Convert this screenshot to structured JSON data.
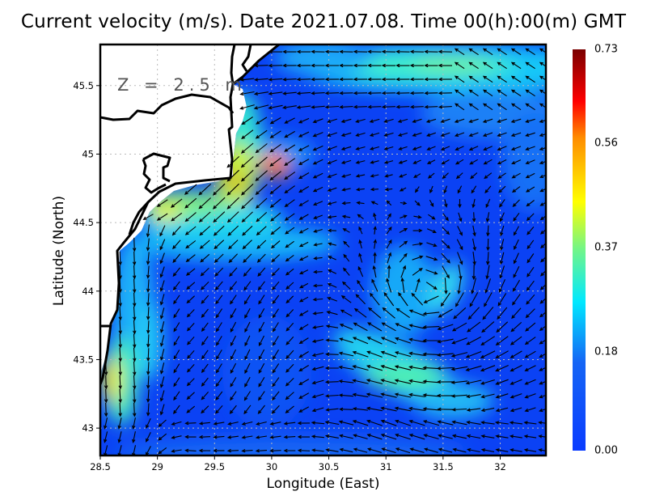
{
  "title": "Current velocity (m/s). Date 2021.07.08. Time 00(h):00(m) GMT",
  "depth_label": "Z = 2.5 m",
  "map": {
    "xlabel": "Longitude (East)",
    "ylabel": "Latitude (North)",
    "lon_range": [
      28.5,
      32.4
    ],
    "lat_range": [
      42.8,
      45.8
    ],
    "lon_ticks": [
      "28.5",
      "29",
      "29.5",
      "30",
      "30.5",
      "31",
      "31.5",
      "32"
    ],
    "lat_ticks": [
      "43",
      "43.5",
      "44",
      "44.5",
      "45",
      "45.5"
    ],
    "grid": true,
    "land_color": "#ffffff",
    "coastline_color": "#000000",
    "arrow_color": "#000000"
  },
  "colorbar": {
    "ticks": [
      "0.00",
      "0.18",
      "0.37",
      "0.56",
      "0.73"
    ],
    "range": [
      0.0,
      0.73
    ],
    "colors": [
      "#0a3cff",
      "#1565f5",
      "#00e8ff",
      "#70f58a",
      "#ffff00",
      "#ff8c00",
      "#ff0000",
      "#7a0000"
    ]
  }
}
